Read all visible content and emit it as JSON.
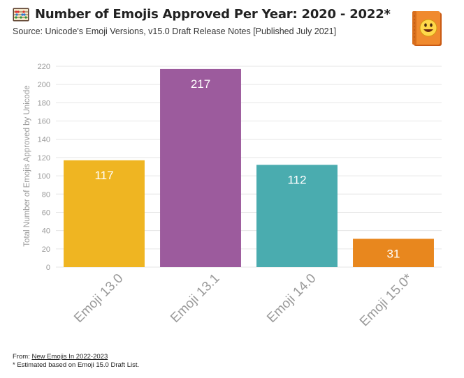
{
  "header": {
    "title": "Number of Emojis Approved Per Year: 2020 - 2022*",
    "subtitle": "Source: Unicode's Emoji Versions, v15.0 Draft Release Notes [Published July 2021]"
  },
  "icons": {
    "title_icon": "abacus-icon",
    "corner_icon": "emoji-book-icon"
  },
  "footer": {
    "from_label": "From: ",
    "from_link": "New Emojis In 2022-2023",
    "note": "* Estimated based on Emoji 15.0 Draft List."
  },
  "chart_data": {
    "type": "bar",
    "title": "Number of Emojis Approved Per Year: 2020 - 2022*",
    "subtitle": "Source: Unicode's Emoji Versions, v15.0 Draft Release Notes [Published July 2021]",
    "xlabel": "",
    "ylabel": "Total Number of Emojis Approved by Unicode",
    "ylim": [
      0,
      220
    ],
    "yticks": [
      0,
      20,
      40,
      60,
      80,
      100,
      120,
      140,
      160,
      180,
      200,
      220
    ],
    "grid": true,
    "categories": [
      "Emoji 13.0",
      "Emoji 13.1",
      "Emoji 14.0",
      "Emoji 15.0*"
    ],
    "values": [
      117,
      217,
      112,
      31
    ],
    "colors": [
      "#efb522",
      "#9c5b9d",
      "#4aacaf",
      "#e8871e"
    ]
  }
}
